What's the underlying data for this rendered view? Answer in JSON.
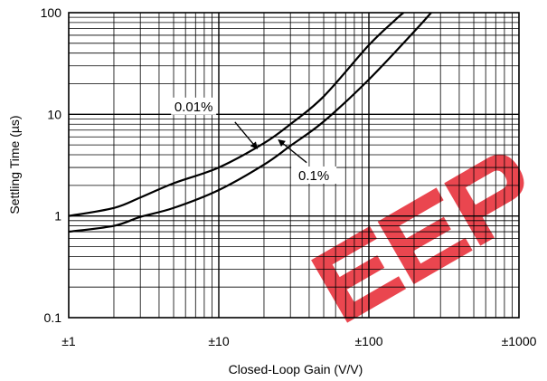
{
  "chart_data": {
    "type": "line",
    "title": "",
    "xlabel": "Closed-Loop Gain (V/V)",
    "ylabel": "Settling Time (µs)",
    "xscale": "log",
    "yscale": "log",
    "xlim": [
      1,
      1000
    ],
    "ylim": [
      0.1,
      100
    ],
    "grid": true,
    "x_ticks": [
      {
        "value": 1,
        "label": "±1"
      },
      {
        "value": 10,
        "label": "±10"
      },
      {
        "value": 100,
        "label": "±100"
      },
      {
        "value": 1000,
        "label": "±1000"
      }
    ],
    "y_ticks": [
      {
        "value": 0.1,
        "label": "0.1"
      },
      {
        "value": 1,
        "label": "1"
      },
      {
        "value": 10,
        "label": "10"
      },
      {
        "value": 100,
        "label": "100"
      }
    ],
    "series": [
      {
        "name": "0.01%",
        "color": "#000000",
        "points": [
          [
            1,
            1.0
          ],
          [
            2,
            1.2
          ],
          [
            3,
            1.52
          ],
          [
            5,
            2.1
          ],
          [
            10,
            3.0
          ],
          [
            20,
            5.2
          ],
          [
            30,
            8.0
          ],
          [
            50,
            15
          ],
          [
            100,
            48
          ],
          [
            150,
            85
          ],
          [
            170,
            100
          ]
        ]
      },
      {
        "name": "0.1%",
        "color": "#000000",
        "points": [
          [
            1,
            0.7
          ],
          [
            2,
            0.8
          ],
          [
            3,
            0.98
          ],
          [
            5,
            1.2
          ],
          [
            10,
            1.8
          ],
          [
            20,
            3.2
          ],
          [
            30,
            4.9
          ],
          [
            50,
            8.5
          ],
          [
            100,
            22
          ],
          [
            200,
            65
          ],
          [
            260,
            100
          ]
        ]
      }
    ],
    "annotations": [
      {
        "text": "0.01%",
        "series": "0.01%",
        "label_at": [
          6.8,
          11.2
        ],
        "arrow_from": [
          12.8,
          8.4
        ],
        "arrow_to": [
          18,
          4.6
        ]
      },
      {
        "text": "0.1%",
        "series": "0.1%",
        "label_at": [
          43,
          2.35
        ],
        "arrow_from": [
          38.5,
          3.35
        ],
        "arrow_to": [
          25,
          5.6
        ]
      }
    ],
    "watermark": {
      "text": "EEP",
      "color": "#e8323c"
    }
  }
}
